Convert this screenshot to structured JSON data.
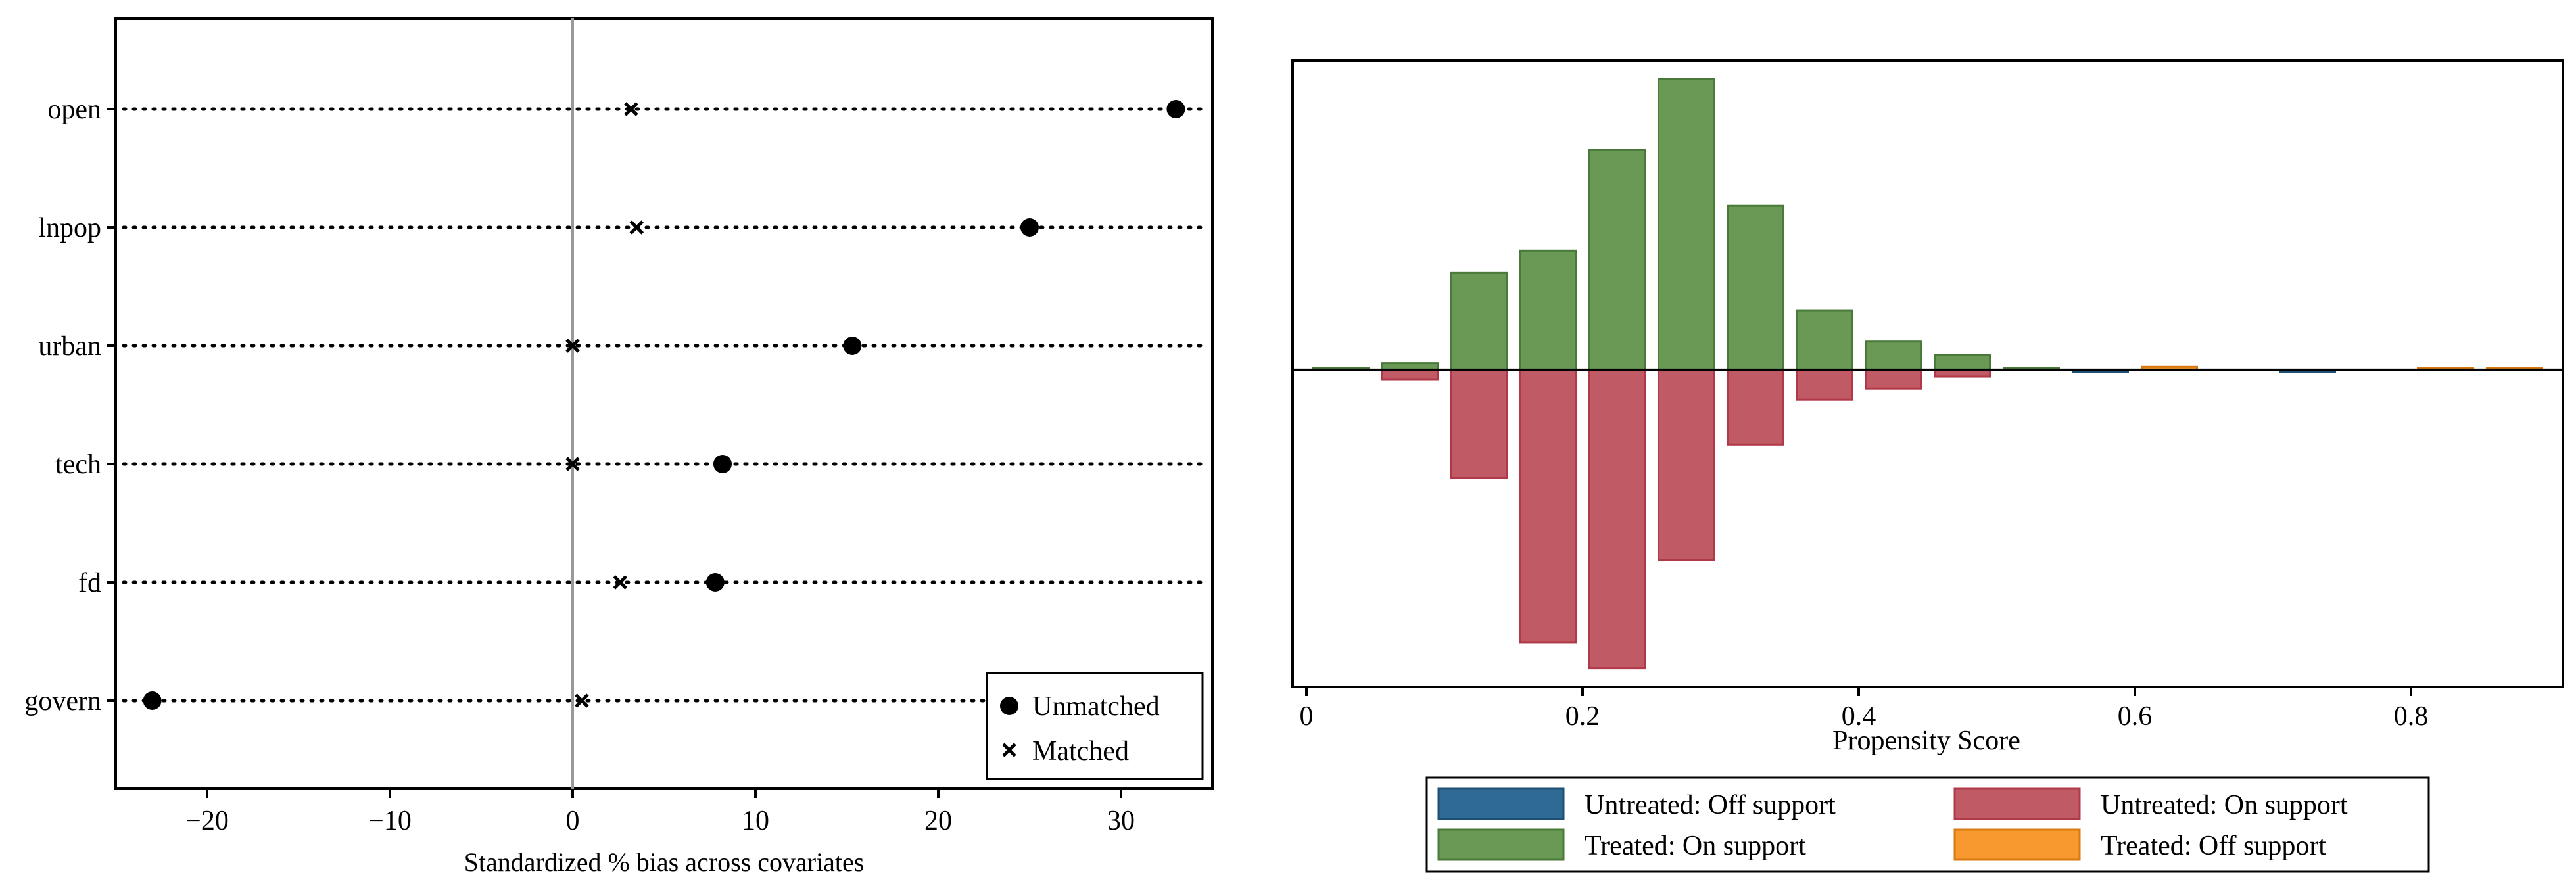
{
  "chart_data": [
    {
      "type": "scatter",
      "xlabel": "Standardized % bias across covariates",
      "xlim": [
        -25,
        35
      ],
      "xticks": [
        -20,
        -10,
        0,
        10,
        20,
        30
      ],
      "xtick_labels": [
        "−20",
        "−10",
        "0",
        "10",
        "20",
        "30"
      ],
      "categories": [
        "open",
        "lnpop",
        "urban",
        "tech",
        "fd",
        "govern"
      ],
      "series": [
        {
          "name": "Unmatched",
          "marker": "circle",
          "values": [
            33.0,
            25.0,
            15.3,
            8.2,
            7.8,
            -23.0
          ]
        },
        {
          "name": "Matched",
          "marker": "x",
          "values": [
            3.2,
            3.5,
            0.0,
            0.0,
            2.6,
            0.5
          ]
        }
      ],
      "reference_line": 0,
      "legend_position": "bottom-right"
    },
    {
      "type": "bar",
      "xlabel": "Propensity Score",
      "xlim": [
        -0.01,
        0.91
      ],
      "xticks": [
        0,
        0.2,
        0.4,
        0.6,
        0.8
      ],
      "xtick_labels": [
        "0",
        "0.2",
        "0.4",
        "0.6",
        "0.8"
      ],
      "bin_width": 0.05,
      "bins": [
        {
          "x": 0.025,
          "treated": 0.003,
          "untreated": 0.0,
          "treated_group": "on",
          "untreated_group": "off"
        },
        {
          "x": 0.075,
          "treated": 0.018,
          "untreated": 0.025,
          "treated_group": "on",
          "untreated_group": "on"
        },
        {
          "x": 0.125,
          "treated": 0.26,
          "untreated": 0.29,
          "treated_group": "on",
          "untreated_group": "on"
        },
        {
          "x": 0.175,
          "treated": 0.32,
          "untreated": 0.73,
          "treated_group": "on",
          "untreated_group": "on"
        },
        {
          "x": 0.225,
          "treated": 0.59,
          "untreated": 0.8,
          "treated_group": "on",
          "untreated_group": "on"
        },
        {
          "x": 0.275,
          "treated": 0.78,
          "untreated": 0.51,
          "treated_group": "on",
          "untreated_group": "on"
        },
        {
          "x": 0.325,
          "treated": 0.44,
          "untreated": 0.2,
          "treated_group": "on",
          "untreated_group": "on"
        },
        {
          "x": 0.375,
          "treated": 0.16,
          "untreated": 0.08,
          "treated_group": "on",
          "untreated_group": "on"
        },
        {
          "x": 0.425,
          "treated": 0.076,
          "untreated": 0.05,
          "treated_group": "on",
          "untreated_group": "on"
        },
        {
          "x": 0.475,
          "treated": 0.04,
          "untreated": 0.018,
          "treated_group": "on",
          "untreated_group": "on"
        },
        {
          "x": 0.525,
          "treated": 0.004,
          "untreated": 0.0,
          "treated_group": "on",
          "untreated_group": "off"
        },
        {
          "x": 0.575,
          "treated": 0.0,
          "untreated": 0.004,
          "treated_group": "off",
          "untreated_group": "off"
        },
        {
          "x": 0.625,
          "treated": 0.008,
          "untreated": 0.0,
          "treated_group": "off",
          "untreated_group": "off"
        },
        {
          "x": 0.725,
          "treated": 0.0,
          "untreated": 0.004,
          "treated_group": "off",
          "untreated_group": "off"
        },
        {
          "x": 0.825,
          "treated": 0.004,
          "untreated": 0.0,
          "treated_group": "off",
          "untreated_group": "off"
        },
        {
          "x": 0.875,
          "treated": 0.004,
          "untreated": 0.0,
          "treated_group": "off",
          "untreated_group": "off"
        }
      ],
      "ylim": [
        -0.85,
        0.83
      ],
      "legend_position": "bottom",
      "legend": [
        {
          "key": "untreated_off",
          "label": "Untreated: Off support",
          "color": "#2e6a94"
        },
        {
          "key": "untreated_on",
          "label": "Untreated: On support",
          "color": "#c05a64"
        },
        {
          "key": "treated_on",
          "label": "Treated: On support",
          "color": "#6a9955"
        },
        {
          "key": "treated_off",
          "label": "Treated: Off support",
          "color": "#f7992e"
        }
      ]
    }
  ],
  "colors": {
    "untreated_on_stroke": "#b03848",
    "treated_on_stroke": "#497a3a",
    "untreated_off_stroke": "#1d4f73",
    "treated_off_stroke": "#d77a12",
    "zero_line": "#999999"
  }
}
